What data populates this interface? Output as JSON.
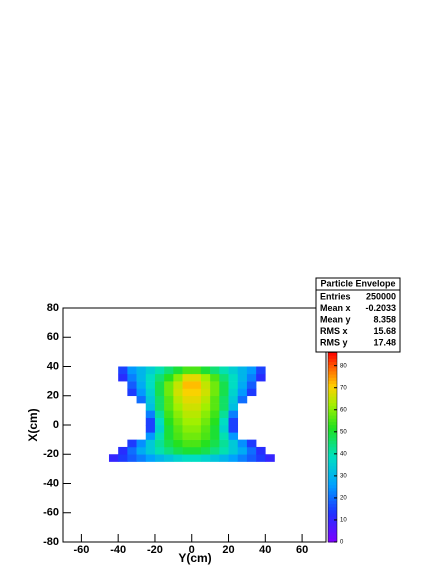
{
  "chart_data": {
    "type": "heatmap",
    "xlabel": "Y(cm)",
    "ylabel": "X(cm)",
    "xlim": [
      -70,
      73
    ],
    "ylim": [
      -80,
      80
    ],
    "zlim": [
      0,
      86
    ],
    "xticks": [
      -60,
      -40,
      -20,
      0,
      20,
      40,
      60
    ],
    "yticks": [
      -80,
      -60,
      -40,
      -20,
      0,
      20,
      40,
      60,
      80
    ],
    "zticks": [
      0,
      10,
      20,
      30,
      40,
      50,
      60,
      70,
      80
    ],
    "xbins": [
      -45,
      -40,
      -35,
      -30,
      -25,
      -20,
      -15,
      -10,
      -5,
      0,
      5,
      10,
      15,
      20,
      25,
      30,
      35,
      40,
      45
    ],
    "ybins": [
      -25,
      -20,
      -15,
      -10,
      -5,
      0,
      5,
      10,
      15,
      20,
      25,
      30,
      35,
      40
    ],
    "z": [
      [
        10,
        14,
        18,
        22,
        26,
        30,
        33,
        36,
        38,
        38,
        36,
        33,
        30,
        26,
        22,
        18,
        14,
        10
      ],
      [
        null,
        12,
        20,
        28,
        34,
        40,
        44,
        48,
        50,
        50,
        48,
        44,
        40,
        34,
        28,
        20,
        12,
        null
      ],
      [
        null,
        null,
        14,
        24,
        34,
        42,
        48,
        52,
        55,
        55,
        52,
        48,
        42,
        34,
        24,
        14,
        null,
        null
      ],
      [
        null,
        null,
        null,
        null,
        25,
        40,
        50,
        55,
        58,
        58,
        55,
        50,
        40,
        25,
        null,
        null,
        null,
        null
      ],
      [
        null,
        null,
        null,
        null,
        15,
        36,
        50,
        56,
        60,
        60,
        56,
        50,
        36,
        15,
        null,
        null,
        null,
        null
      ],
      [
        null,
        null,
        null,
        null,
        15,
        38,
        52,
        58,
        62,
        62,
        58,
        52,
        38,
        15,
        null,
        null,
        null,
        null
      ],
      [
        null,
        null,
        null,
        null,
        22,
        42,
        54,
        60,
        64,
        64,
        60,
        54,
        42,
        22,
        null,
        null,
        null,
        null
      ],
      [
        null,
        null,
        null,
        null,
        32,
        46,
        56,
        62,
        66,
        66,
        62,
        56,
        46,
        32,
        null,
        null,
        null,
        null
      ],
      [
        null,
        null,
        null,
        20,
        34,
        46,
        56,
        64,
        68,
        68,
        64,
        56,
        46,
        34,
        20,
        null,
        null,
        null
      ],
      [
        null,
        null,
        14,
        25,
        36,
        48,
        58,
        66,
        70,
        70,
        66,
        58,
        48,
        36,
        25,
        14,
        null,
        null
      ],
      [
        null,
        null,
        18,
        28,
        38,
        48,
        58,
        65,
        72,
        72,
        65,
        58,
        48,
        38,
        28,
        18,
        null,
        null
      ],
      [
        null,
        12,
        22,
        30,
        38,
        45,
        52,
        60,
        68,
        68,
        62,
        55,
        45,
        38,
        30,
        22,
        12,
        null
      ],
      [
        null,
        15,
        25,
        30,
        35,
        40,
        45,
        50,
        55,
        55,
        50,
        45,
        40,
        35,
        30,
        25,
        15,
        null
      ]
    ],
    "stats": {
      "title": "Particle Envelope",
      "rows": [
        [
          "Entries",
          "250000"
        ],
        [
          "Mean x",
          "-0.2033"
        ],
        [
          "Mean y",
          "8.358"
        ],
        [
          "RMS x",
          "15.68"
        ],
        [
          "RMS y",
          "17.48"
        ]
      ]
    }
  }
}
